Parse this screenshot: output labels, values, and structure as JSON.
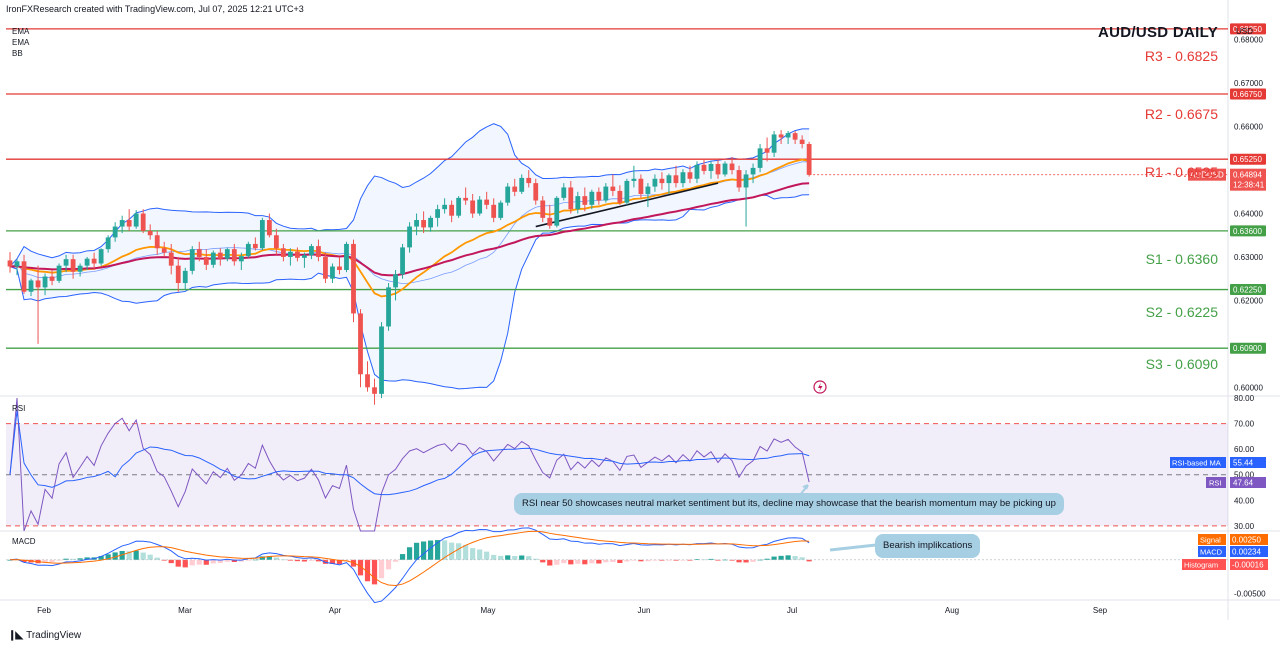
{
  "header": "IronFXResearch created with TradingView.com, Jul 07, 2025 12:21 UTC+3",
  "indicators": [
    "EMA",
    "EMA",
    "BB"
  ],
  "title": "AUD/USD DAILY",
  "currency": "USD",
  "footer_brand": "TradingView",
  "colors": {
    "up": "#26a69a",
    "down": "#ef5350",
    "resistance": "#e53935",
    "support": "#43a047",
    "ema_fast": "#ff9800",
    "ema_slow": "#c2185b",
    "bb": "#2962ff",
    "rsi": "#7e57c2",
    "rsi_ma": "#2962ff"
  },
  "levels": [
    {
      "name": "R3 - 0.6825",
      "value": 0.6825,
      "type": "resistance",
      "tag": "0.68250"
    },
    {
      "name": "R2 - 0.6675",
      "value": 0.6675,
      "type": "resistance",
      "tag": "0.66750"
    },
    {
      "name": "R1 - 0.6525",
      "value": 0.6525,
      "type": "resistance",
      "tag": "0.65250"
    },
    {
      "name": "S1 - 0.6360",
      "value": 0.636,
      "type": "support",
      "tag": "0.63600"
    },
    {
      "name": "S2 - 0.6225",
      "value": 0.6225,
      "type": "support",
      "tag": "0.62250"
    },
    {
      "name": "S3 - 0.6090",
      "value": 0.609,
      "type": "support",
      "tag": "0.60900"
    }
  ],
  "price_tag": {
    "symbol": "AUDUSD",
    "value": "0.64894",
    "countdown": "12:38:41"
  },
  "rsi_tags": {
    "ma_label": "RSI-based MA",
    "ma_value": "55.44",
    "rsi_label": "RSI",
    "rsi_value": "47.64"
  },
  "macd_tags": {
    "signal_label": "Signal",
    "signal_value": "0.00250",
    "macd_label": "MACD",
    "macd_value": "0.00234",
    "hist_label": "Histogram",
    "hist_value": "-0.00016"
  },
  "pane_labels": {
    "rsi": "RSI",
    "macd": "MACD"
  },
  "annotations": {
    "rsi": "RSI near 50 showcases neutral market sentiment but its, decline may showcase that the bearish momentum may be picking up",
    "macd": "Bearish implikcations"
  },
  "chart_data": {
    "type": "candlestick",
    "x_labels": [
      "Feb",
      "Mar",
      "Apr",
      "May",
      "Jun",
      "Jul",
      "Aug",
      "Sep"
    ],
    "price_axis": {
      "ticks": [
        "0.68000",
        "0.67000",
        "0.66000",
        "0.64000",
        "0.63000",
        "0.62000",
        "0.60000"
      ],
      "ylim": [
        0.598,
        0.685
      ]
    },
    "rsi_axis": {
      "ticks": [
        "80.00",
        "70.00",
        "60.00",
        "50.00",
        "40.00",
        "30.00"
      ],
      "ylim": [
        28,
        80
      ],
      "bands": [
        70,
        50,
        30
      ]
    },
    "macd_axis": {
      "ticks": [
        "-0.00500"
      ],
      "ylim": [
        -0.006,
        0.004
      ]
    },
    "candles_ohlc": [
      [
        0.6292,
        0.6311,
        0.6264,
        0.6278
      ],
      [
        0.6278,
        0.6295,
        0.6258,
        0.629
      ],
      [
        0.629,
        0.6305,
        0.6215,
        0.622
      ],
      [
        0.622,
        0.625,
        0.621,
        0.6246
      ],
      [
        0.6246,
        0.628,
        0.61,
        0.623
      ],
      [
        0.623,
        0.6262,
        0.6212,
        0.6255
      ],
      [
        0.6255,
        0.627,
        0.6235,
        0.6245
      ],
      [
        0.6245,
        0.6285,
        0.624,
        0.628
      ],
      [
        0.628,
        0.6305,
        0.6265,
        0.6295
      ],
      [
        0.6295,
        0.6305,
        0.625,
        0.6266
      ],
      [
        0.6266,
        0.6285,
        0.6255,
        0.628
      ],
      [
        0.628,
        0.63,
        0.627,
        0.6296
      ],
      [
        0.6296,
        0.631,
        0.627,
        0.6285
      ],
      [
        0.6285,
        0.632,
        0.628,
        0.6318
      ],
      [
        0.6318,
        0.635,
        0.631,
        0.6345
      ],
      [
        0.6345,
        0.638,
        0.6335,
        0.637
      ],
      [
        0.637,
        0.6395,
        0.6355,
        0.6385
      ],
      [
        0.6385,
        0.641,
        0.636,
        0.637
      ],
      [
        0.637,
        0.6408,
        0.6365,
        0.64
      ],
      [
        0.64,
        0.641,
        0.6355,
        0.636
      ],
      [
        0.636,
        0.6375,
        0.634,
        0.635
      ],
      [
        0.635,
        0.636,
        0.6305,
        0.632
      ],
      [
        0.632,
        0.6335,
        0.63,
        0.631
      ],
      [
        0.631,
        0.633,
        0.626,
        0.628
      ],
      [
        0.628,
        0.63,
        0.622,
        0.624
      ],
      [
        0.624,
        0.6275,
        0.6225,
        0.6268
      ],
      [
        0.6268,
        0.6325,
        0.626,
        0.6318
      ],
      [
        0.6318,
        0.6335,
        0.629,
        0.63
      ],
      [
        0.63,
        0.6318,
        0.627,
        0.6282
      ],
      [
        0.6282,
        0.6315,
        0.6275,
        0.631
      ],
      [
        0.631,
        0.632,
        0.628,
        0.6296
      ],
      [
        0.6296,
        0.6322,
        0.629,
        0.6318
      ],
      [
        0.6318,
        0.633,
        0.628,
        0.629
      ],
      [
        0.629,
        0.631,
        0.627,
        0.6302
      ],
      [
        0.6302,
        0.6335,
        0.6298,
        0.633
      ],
      [
        0.633,
        0.6345,
        0.6315,
        0.632
      ],
      [
        0.632,
        0.639,
        0.6316,
        0.6385
      ],
      [
        0.6385,
        0.64,
        0.6345,
        0.635
      ],
      [
        0.635,
        0.6365,
        0.6305,
        0.632
      ],
      [
        0.632,
        0.633,
        0.629,
        0.63
      ],
      [
        0.63,
        0.632,
        0.628,
        0.6312
      ],
      [
        0.6312,
        0.6322,
        0.629,
        0.6298
      ],
      [
        0.6298,
        0.631,
        0.6275,
        0.6304
      ],
      [
        0.6304,
        0.633,
        0.6295,
        0.6325
      ],
      [
        0.6325,
        0.634,
        0.629,
        0.63
      ],
      [
        0.63,
        0.631,
        0.624,
        0.625
      ],
      [
        0.625,
        0.6285,
        0.624,
        0.6278
      ],
      [
        0.6278,
        0.63,
        0.626,
        0.627
      ],
      [
        0.627,
        0.6335,
        0.6265,
        0.633
      ],
      [
        0.633,
        0.634,
        0.615,
        0.617
      ],
      [
        0.617,
        0.618,
        0.6,
        0.603
      ],
      [
        0.603,
        0.606,
        0.599,
        0.6
      ],
      [
        0.6,
        0.602,
        0.596,
        0.5985
      ],
      [
        0.5985,
        0.615,
        0.5975,
        0.614
      ],
      [
        0.614,
        0.624,
        0.613,
        0.623
      ],
      [
        0.623,
        0.627,
        0.62,
        0.626
      ],
      [
        0.626,
        0.633,
        0.625,
        0.6322
      ],
      [
        0.6322,
        0.638,
        0.631,
        0.637
      ],
      [
        0.637,
        0.64,
        0.635,
        0.6385
      ],
      [
        0.6385,
        0.6405,
        0.6355,
        0.6368
      ],
      [
        0.6368,
        0.6395,
        0.6358,
        0.639
      ],
      [
        0.639,
        0.642,
        0.637,
        0.641
      ],
      [
        0.641,
        0.6435,
        0.64,
        0.642
      ],
      [
        0.642,
        0.643,
        0.638,
        0.6395
      ],
      [
        0.6395,
        0.644,
        0.639,
        0.6436
      ],
      [
        0.6436,
        0.646,
        0.642,
        0.643
      ],
      [
        0.643,
        0.6445,
        0.639,
        0.64
      ],
      [
        0.64,
        0.644,
        0.6395,
        0.6432
      ],
      [
        0.6432,
        0.645,
        0.641,
        0.642
      ],
      [
        0.642,
        0.6435,
        0.638,
        0.639
      ],
      [
        0.639,
        0.643,
        0.6385,
        0.6425
      ],
      [
        0.6425,
        0.647,
        0.6418,
        0.6462
      ],
      [
        0.6462,
        0.648,
        0.644,
        0.645
      ],
      [
        0.645,
        0.649,
        0.6445,
        0.6482
      ],
      [
        0.6482,
        0.65,
        0.646,
        0.647
      ],
      [
        0.647,
        0.648,
        0.642,
        0.643
      ],
      [
        0.643,
        0.644,
        0.638,
        0.639
      ],
      [
        0.639,
        0.642,
        0.6365,
        0.6372
      ],
      [
        0.6372,
        0.644,
        0.6368,
        0.6436
      ],
      [
        0.6436,
        0.647,
        0.643,
        0.646
      ],
      [
        0.646,
        0.6475,
        0.64,
        0.641
      ],
      [
        0.641,
        0.645,
        0.64,
        0.644
      ],
      [
        0.644,
        0.646,
        0.6405,
        0.642
      ],
      [
        0.642,
        0.6455,
        0.641,
        0.645
      ],
      [
        0.645,
        0.646,
        0.642,
        0.643
      ],
      [
        0.643,
        0.647,
        0.6425,
        0.6462
      ],
      [
        0.6462,
        0.649,
        0.644,
        0.6452
      ],
      [
        0.6452,
        0.6465,
        0.642,
        0.6425
      ],
      [
        0.6425,
        0.648,
        0.642,
        0.6475
      ],
      [
        0.6475,
        0.651,
        0.646,
        0.648
      ],
      [
        0.648,
        0.649,
        0.6435,
        0.6445
      ],
      [
        0.6445,
        0.647,
        0.6415,
        0.6462
      ],
      [
        0.6462,
        0.649,
        0.645,
        0.648
      ],
      [
        0.648,
        0.6495,
        0.6455,
        0.647
      ],
      [
        0.647,
        0.6492,
        0.6445,
        0.6488
      ],
      [
        0.6488,
        0.651,
        0.646,
        0.647
      ],
      [
        0.647,
        0.6502,
        0.646,
        0.6495
      ],
      [
        0.6495,
        0.651,
        0.647,
        0.648
      ],
      [
        0.648,
        0.652,
        0.647,
        0.6512
      ],
      [
        0.6512,
        0.6525,
        0.649,
        0.6498
      ],
      [
        0.6498,
        0.652,
        0.648,
        0.6514
      ],
      [
        0.6514,
        0.6525,
        0.648,
        0.649
      ],
      [
        0.649,
        0.652,
        0.6485,
        0.6515
      ],
      [
        0.6515,
        0.653,
        0.649,
        0.65
      ],
      [
        0.65,
        0.651,
        0.645,
        0.646
      ],
      [
        0.646,
        0.65,
        0.637,
        0.649
      ],
      [
        0.649,
        0.6515,
        0.647,
        0.6505
      ],
      [
        0.6505,
        0.656,
        0.6495,
        0.655
      ],
      [
        0.655,
        0.6575,
        0.652,
        0.654
      ],
      [
        0.654,
        0.659,
        0.653,
        0.6582
      ],
      [
        0.6582,
        0.6592,
        0.656,
        0.6575
      ],
      [
        0.6575,
        0.659,
        0.656,
        0.6585
      ],
      [
        0.6585,
        0.659,
        0.656,
        0.657
      ],
      [
        0.657,
        0.658,
        0.655,
        0.656
      ],
      [
        0.656,
        0.6565,
        0.6485,
        0.6489
      ]
    ]
  }
}
